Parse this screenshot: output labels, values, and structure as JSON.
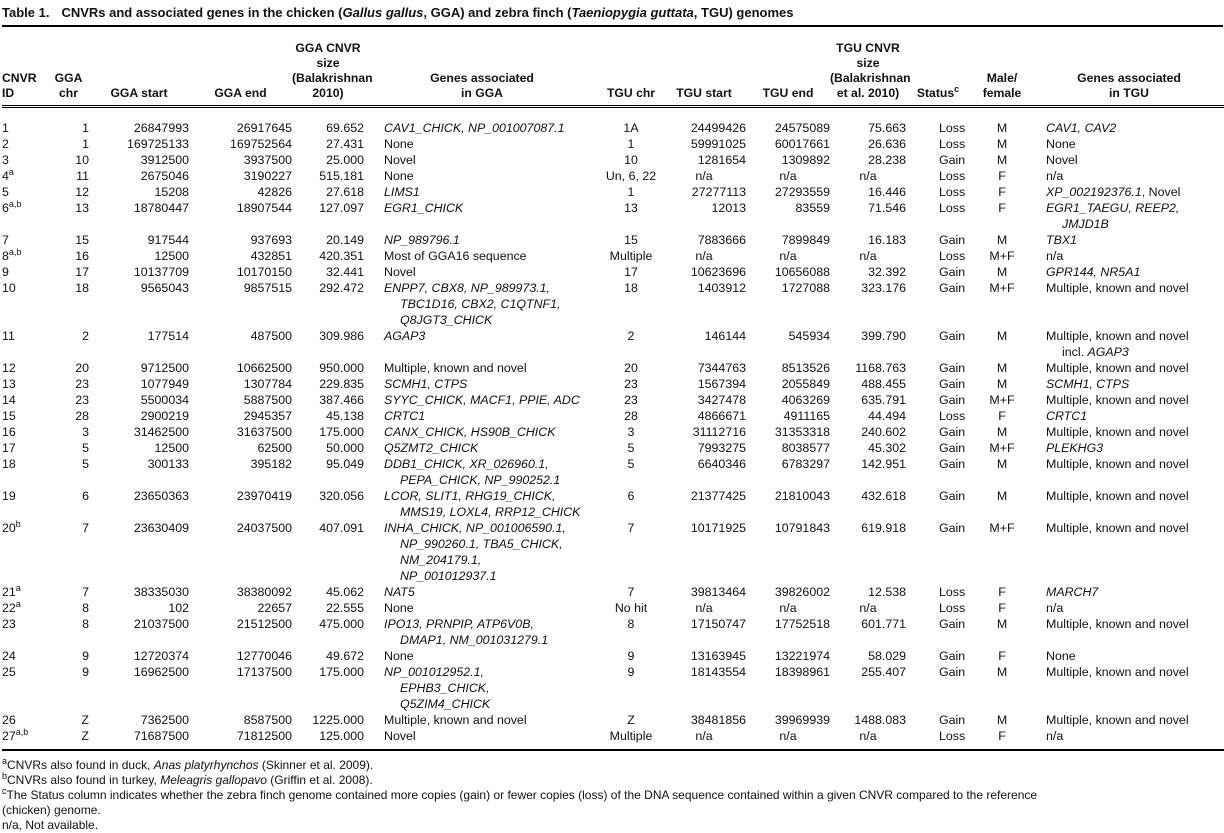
{
  "title": {
    "label": "Table 1.",
    "segments": [
      [
        "CNVRs and associated genes in the chicken (",
        false
      ],
      [
        "Gallus gallus",
        true
      ],
      [
        ", GGA) and zebra finch (",
        false
      ],
      [
        "Taeniopygia guttata",
        true
      ],
      [
        ", TGU) genomes",
        false
      ]
    ]
  },
  "columns": [
    {
      "label": "CNVR\nID",
      "sup": ""
    },
    {
      "label": "GGA\nchr",
      "sup": ""
    },
    {
      "label": "GGA start",
      "sup": ""
    },
    {
      "label": "GGA end",
      "sup": ""
    },
    {
      "label": "GGA CNVR size\n(Balakrishnan\n2010)",
      "sup": ""
    },
    {
      "label": "Genes associated\nin GGA",
      "sup": ""
    },
    {
      "label": "TGU chr",
      "sup": ""
    },
    {
      "label": "TGU start",
      "sup": ""
    },
    {
      "label": "TGU end",
      "sup": ""
    },
    {
      "label": "TGU CNVR\nsize\n(Balakrishnan\net al. 2010)",
      "sup": ""
    },
    {
      "label": "Status",
      "sup": "c"
    },
    {
      "label": "Male/\nfemale",
      "sup": ""
    },
    {
      "label": "Genes associated\nin TGU",
      "sup": ""
    }
  ],
  "rows": [
    {
      "id": "1",
      "sup": "",
      "gga_chr": "1",
      "gga_start": "26847993",
      "gga_end": "26917645",
      "gga_size": "69.652",
      "genes_gga": [
        [
          "CAV1_CHICK, NP_001007087.1",
          true
        ]
      ],
      "tgu_chr": "1A",
      "tgu_start": "24499426",
      "tgu_end": "24575089",
      "tgu_size": "75.663",
      "status": "Loss",
      "sex": "M",
      "genes_tgu": [
        [
          "CAV1, CAV2",
          true
        ]
      ]
    },
    {
      "id": "2",
      "sup": "",
      "gga_chr": "1",
      "gga_start": "169725133",
      "gga_end": "169752564",
      "gga_size": "27.431",
      "genes_gga": [
        [
          "None",
          false
        ]
      ],
      "tgu_chr": "1",
      "tgu_start": "59991025",
      "tgu_end": "60017661",
      "tgu_size": "26.636",
      "status": "Loss",
      "sex": "M",
      "genes_tgu": [
        [
          "None",
          false
        ]
      ]
    },
    {
      "id": "3",
      "sup": "",
      "gga_chr": "10",
      "gga_start": "3912500",
      "gga_end": "3937500",
      "gga_size": "25.000",
      "genes_gga": [
        [
          "Novel",
          false
        ]
      ],
      "tgu_chr": "10",
      "tgu_start": "1281654",
      "tgu_end": "1309892",
      "tgu_size": "28.238",
      "status": "Gain",
      "sex": "M",
      "genes_tgu": [
        [
          "Novel",
          false
        ]
      ]
    },
    {
      "id": "4",
      "sup": "a",
      "gga_chr": "11",
      "gga_start": "2675046",
      "gga_end": "3190227",
      "gga_size": "515.181",
      "genes_gga": [
        [
          "None",
          false
        ]
      ],
      "tgu_chr": "Un, 6, 22",
      "tgu_start": "n/a",
      "tgu_end": "n/a",
      "tgu_size": "n/a",
      "status": "Loss",
      "sex": "F",
      "genes_tgu": [
        [
          "n/a",
          false
        ]
      ]
    },
    {
      "id": "5",
      "sup": "",
      "gga_chr": "12",
      "gga_start": "15208",
      "gga_end": "42826",
      "gga_size": "27.618",
      "genes_gga": [
        [
          "LIMS1",
          true
        ]
      ],
      "tgu_chr": "1",
      "tgu_start": "27277113",
      "tgu_end": "27293559",
      "tgu_size": "16.446",
      "status": "Loss",
      "sex": "F",
      "genes_tgu": [
        [
          "XP_002192376.1",
          true
        ],
        [
          ", Novel",
          false
        ]
      ]
    },
    {
      "id": "6",
      "sup": "a,b",
      "gga_chr": "13",
      "gga_start": "18780447",
      "gga_end": "18907544",
      "gga_size": "127.097",
      "genes_gga": [
        [
          "EGR1_CHICK",
          true
        ]
      ],
      "tgu_chr": "13",
      "tgu_start": "12013",
      "tgu_end": "83559",
      "tgu_size": "71.546",
      "status": "Loss",
      "sex": "F",
      "genes_tgu": [
        [
          "EGR1_TAEGU, REEP2, JMJD1B",
          true
        ]
      ]
    },
    {
      "id": "7",
      "sup": "",
      "gga_chr": "15",
      "gga_start": "917544",
      "gga_end": "937693",
      "gga_size": "20.149",
      "genes_gga": [
        [
          "NP_989796.1",
          true
        ]
      ],
      "tgu_chr": "15",
      "tgu_start": "7883666",
      "tgu_end": "7899849",
      "tgu_size": "16.183",
      "status": "Gain",
      "sex": "M",
      "genes_tgu": [
        [
          "TBX1",
          true
        ]
      ]
    },
    {
      "id": "8",
      "sup": "a,b",
      "gga_chr": "16",
      "gga_start": "12500",
      "gga_end": "432851",
      "gga_size": "420.351",
      "genes_gga": [
        [
          "Most of GGA16 sequence",
          false
        ]
      ],
      "tgu_chr": "Multiple",
      "tgu_start": "n/a",
      "tgu_end": "n/a",
      "tgu_size": "n/a",
      "status": "Loss",
      "sex": "M+F",
      "genes_tgu": [
        [
          "n/a",
          false
        ]
      ]
    },
    {
      "id": "9",
      "sup": "",
      "gga_chr": "17",
      "gga_start": "10137709",
      "gga_end": "10170150",
      "gga_size": "32.441",
      "genes_gga": [
        [
          "Novel",
          false
        ]
      ],
      "tgu_chr": "17",
      "tgu_start": "10623696",
      "tgu_end": "10656088",
      "tgu_size": "32.392",
      "status": "Gain",
      "sex": "M",
      "genes_tgu": [
        [
          "GPR144, NR5A1",
          true
        ]
      ]
    },
    {
      "id": "10",
      "sup": "",
      "gga_chr": "18",
      "gga_start": "9565043",
      "gga_end": "9857515",
      "gga_size": "292.472",
      "genes_gga": [
        [
          "ENPP7, CBX8, NP_989973.1,\nTBC1D16, CBX2, C1QTNF1,\nQ8JGT3_CHICK",
          true
        ]
      ],
      "tgu_chr": "18",
      "tgu_start": "1403912",
      "tgu_end": "1727088",
      "tgu_size": "323.176",
      "status": "Gain",
      "sex": "M+F",
      "genes_tgu": [
        [
          "Multiple, known and novel",
          false
        ]
      ]
    },
    {
      "id": "11",
      "sup": "",
      "gga_chr": "2",
      "gga_start": "177514",
      "gga_end": "487500",
      "gga_size": "309.986",
      "genes_gga": [
        [
          "AGAP3",
          true
        ]
      ],
      "tgu_chr": "2",
      "tgu_start": "146144",
      "tgu_end": "545934",
      "tgu_size": "399.790",
      "status": "Gain",
      "sex": "M",
      "genes_tgu": [
        [
          "Multiple, known and novel\nincl. ",
          false
        ],
        [
          "AGAP3",
          true
        ]
      ]
    },
    {
      "id": "12",
      "sup": "",
      "gga_chr": "20",
      "gga_start": "9712500",
      "gga_end": "10662500",
      "gga_size": "950.000",
      "genes_gga": [
        [
          "Multiple, known and novel",
          false
        ]
      ],
      "tgu_chr": "20",
      "tgu_start": "7344763",
      "tgu_end": "8513526",
      "tgu_size": "1168.763",
      "status": "Gain",
      "sex": "M",
      "genes_tgu": [
        [
          "Multiple, known and novel",
          false
        ]
      ]
    },
    {
      "id": "13",
      "sup": "",
      "gga_chr": "23",
      "gga_start": "1077949",
      "gga_end": "1307784",
      "gga_size": "229.835",
      "genes_gga": [
        [
          "SCMH1, CTPS",
          true
        ]
      ],
      "tgu_chr": "23",
      "tgu_start": "1567394",
      "tgu_end": "2055849",
      "tgu_size": "488.455",
      "status": "Gain",
      "sex": "M",
      "genes_tgu": [
        [
          "SCMH1, CTPS",
          true
        ]
      ]
    },
    {
      "id": "14",
      "sup": "",
      "gga_chr": "23",
      "gga_start": "5500034",
      "gga_end": "5887500",
      "gga_size": "387.466",
      "genes_gga": [
        [
          "SYYC_CHICK, MACF1, PPIE, ADC",
          true
        ]
      ],
      "tgu_chr": "23",
      "tgu_start": "3427478",
      "tgu_end": "4063269",
      "tgu_size": "635.791",
      "status": "Gain",
      "sex": "M+F",
      "genes_tgu": [
        [
          "Multiple, known and novel",
          false
        ]
      ]
    },
    {
      "id": "15",
      "sup": "",
      "gga_chr": "28",
      "gga_start": "2900219",
      "gga_end": "2945357",
      "gga_size": "45.138",
      "genes_gga": [
        [
          "CRTC1",
          true
        ]
      ],
      "tgu_chr": "28",
      "tgu_start": "4866671",
      "tgu_end": "4911165",
      "tgu_size": "44.494",
      "status": "Loss",
      "sex": "F",
      "genes_tgu": [
        [
          "CRTC1",
          true
        ]
      ]
    },
    {
      "id": "16",
      "sup": "",
      "gga_chr": "3",
      "gga_start": "31462500",
      "gga_end": "31637500",
      "gga_size": "175.000",
      "genes_gga": [
        [
          "CANX_CHICK, HS90B_CHICK",
          true
        ]
      ],
      "tgu_chr": "3",
      "tgu_start": "31112716",
      "tgu_end": "31353318",
      "tgu_size": "240.602",
      "status": "Gain",
      "sex": "M",
      "genes_tgu": [
        [
          "Multiple, known and novel",
          false
        ]
      ]
    },
    {
      "id": "17",
      "sup": "",
      "gga_chr": "5",
      "gga_start": "12500",
      "gga_end": "62500",
      "gga_size": "50.000",
      "genes_gga": [
        [
          "Q5ZMT2_CHICK",
          true
        ]
      ],
      "tgu_chr": "5",
      "tgu_start": "7993275",
      "tgu_end": "8038577",
      "tgu_size": "45.302",
      "status": "Gain",
      "sex": "M+F",
      "genes_tgu": [
        [
          "PLEKHG3",
          true
        ]
      ]
    },
    {
      "id": "18",
      "sup": "",
      "gga_chr": "5",
      "gga_start": "300133",
      "gga_end": "395182",
      "gga_size": "95.049",
      "genes_gga": [
        [
          "DDB1_CHICK, XR_026960.1,\nPEPA_CHICK, NP_990252.1",
          true
        ]
      ],
      "tgu_chr": "5",
      "tgu_start": "6640346",
      "tgu_end": "6783297",
      "tgu_size": "142.951",
      "status": "Gain",
      "sex": "M",
      "genes_tgu": [
        [
          "Multiple, known and novel",
          false
        ]
      ]
    },
    {
      "id": "19",
      "sup": "",
      "gga_chr": "6",
      "gga_start": "23650363",
      "gga_end": "23970419",
      "gga_size": "320.056",
      "genes_gga": [
        [
          "LCOR, SLIT1, RHG19_CHICK,\nMMS19, LOXL4, RRP12_CHICK",
          true
        ]
      ],
      "tgu_chr": "6",
      "tgu_start": "21377425",
      "tgu_end": "21810043",
      "tgu_size": "432.618",
      "status": "Gain",
      "sex": "M",
      "genes_tgu": [
        [
          "Multiple, known and novel",
          false
        ]
      ]
    },
    {
      "id": "20",
      "sup": "b",
      "gga_chr": "7",
      "gga_start": "23630409",
      "gga_end": "24037500",
      "gga_size": "407.091",
      "genes_gga": [
        [
          "INHA_CHICK, NP_001006590.1,\nNP_990260.1, TBA5_CHICK,\nNM_204179.1,\nNP_001012937.1",
          true
        ]
      ],
      "tgu_chr": "7",
      "tgu_start": "10171925",
      "tgu_end": "10791843",
      "tgu_size": "619.918",
      "status": "Gain",
      "sex": "M+F",
      "genes_tgu": [
        [
          "Multiple, known and novel",
          false
        ]
      ]
    },
    {
      "id": "21",
      "sup": "a",
      "gga_chr": "7",
      "gga_start": "38335030",
      "gga_end": "38380092",
      "gga_size": "45.062",
      "genes_gga": [
        [
          "NAT5",
          true
        ]
      ],
      "tgu_chr": "7",
      "tgu_start": "39813464",
      "tgu_end": "39826002",
      "tgu_size": "12.538",
      "status": "Loss",
      "sex": "F",
      "genes_tgu": [
        [
          "MARCH7",
          true
        ]
      ]
    },
    {
      "id": "22",
      "sup": "a",
      "gga_chr": "8",
      "gga_start": "102",
      "gga_end": "22657",
      "gga_size": "22.555",
      "genes_gga": [
        [
          "None",
          false
        ]
      ],
      "tgu_chr": "No hit",
      "tgu_start": "n/a",
      "tgu_end": "n/a",
      "tgu_size": "n/a",
      "status": "Loss",
      "sex": "F",
      "genes_tgu": [
        [
          "n/a",
          false
        ]
      ]
    },
    {
      "id": "23",
      "sup": "",
      "gga_chr": "8",
      "gga_start": "21037500",
      "gga_end": "21512500",
      "gga_size": "475.000",
      "genes_gga": [
        [
          "IPO13, PRNPIP, ATP6V0B,\nDMAP1, NM_001031279.1",
          true
        ]
      ],
      "tgu_chr": "8",
      "tgu_start": "17150747",
      "tgu_end": "17752518",
      "tgu_size": "601.771",
      "status": "Gain",
      "sex": "M",
      "genes_tgu": [
        [
          "Multiple, known and novel",
          false
        ]
      ]
    },
    {
      "id": "24",
      "sup": "",
      "gga_chr": "9",
      "gga_start": "12720374",
      "gga_end": "12770046",
      "gga_size": "49.672",
      "genes_gga": [
        [
          "None",
          false
        ]
      ],
      "tgu_chr": "9",
      "tgu_start": "13163945",
      "tgu_end": "13221974",
      "tgu_size": "58.029",
      "status": "Gain",
      "sex": "F",
      "genes_tgu": [
        [
          "None",
          false
        ]
      ]
    },
    {
      "id": "25",
      "sup": "",
      "gga_chr": "9",
      "gga_start": "16962500",
      "gga_end": "17137500",
      "gga_size": "175.000",
      "genes_gga": [
        [
          "NP_001012952.1,\nEPHB3_CHICK,\nQ5ZIM4_CHICK",
          true
        ]
      ],
      "tgu_chr": "9",
      "tgu_start": "18143554",
      "tgu_end": "18398961",
      "tgu_size": "255.407",
      "status": "Gain",
      "sex": "M",
      "genes_tgu": [
        [
          "Multiple, known and novel",
          false
        ]
      ]
    },
    {
      "id": "26",
      "sup": "",
      "gga_chr": "Z",
      "gga_start": "7362500",
      "gga_end": "8587500",
      "gga_size": "1225.000",
      "genes_gga": [
        [
          "Multiple, known and novel",
          false
        ]
      ],
      "tgu_chr": "Z",
      "tgu_start": "38481856",
      "tgu_end": "39969939",
      "tgu_size": "1488.083",
      "status": "Gain",
      "sex": "M",
      "genes_tgu": [
        [
          "Multiple, known and novel",
          false
        ]
      ]
    },
    {
      "id": "27",
      "sup": "a,b",
      "gga_chr": "Z",
      "gga_start": "71687500",
      "gga_end": "71812500",
      "gga_size": "125.000",
      "genes_gga": [
        [
          "Novel",
          false
        ]
      ],
      "tgu_chr": "Multiple",
      "tgu_start": "n/a",
      "tgu_end": "n/a",
      "tgu_size": "n/a",
      "status": "Loss",
      "sex": "F",
      "genes_tgu": [
        [
          "n/a",
          false
        ]
      ]
    }
  ],
  "footnotes": [
    {
      "sup": "a",
      "segs": [
        [
          "CNVRs also found in duck, ",
          false
        ],
        [
          "Anas platyrhynchos",
          true
        ],
        [
          " (Skinner et al. 2009).",
          false
        ]
      ]
    },
    {
      "sup": "b",
      "segs": [
        [
          "CNVRs also found in turkey, ",
          false
        ],
        [
          "Meleagris gallopavo",
          true
        ],
        [
          " (Griffin et al. 2008).",
          false
        ]
      ]
    },
    {
      "sup": "c",
      "segs": [
        [
          "The Status column indicates whether the zebra finch genome contained more copies (gain) or fewer copies (loss) of the DNA sequence contained within a given CNVR compared to the reference\n(chicken) genome.",
          false
        ]
      ]
    },
    {
      "sup": "",
      "segs": [
        [
          "n/a, Not available.",
          false
        ]
      ]
    }
  ]
}
